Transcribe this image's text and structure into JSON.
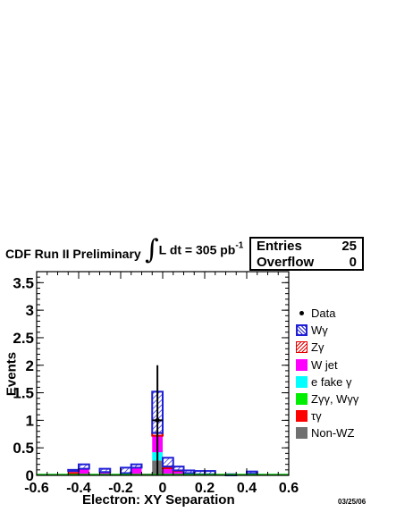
{
  "header": {
    "experiment": "CDF Run II Preliminary",
    "lumi_text": "L dt = 305 pb",
    "lumi_exp": "-1"
  },
  "stats": {
    "entries_label": "Entries",
    "entries_value": "25",
    "overflow_label": "Overflow",
    "overflow_value": "0"
  },
  "date": "03/25/06",
  "legend": [
    {
      "label": "Data",
      "marker": "dot",
      "color": "#000000"
    },
    {
      "label": "Wγ",
      "marker": "hatch",
      "color": "#1f1fd6"
    },
    {
      "label": "Zγ",
      "marker": "hatch-red",
      "color": "#e60000"
    },
    {
      "label": "W jet",
      "marker": "fill",
      "color": "#ff00ff"
    },
    {
      "label": "e fake γ",
      "marker": "fill",
      "color": "#00ffff"
    },
    {
      "label": "Zγγ, Wγγ",
      "marker": "fill",
      "color": "#00ee00"
    },
    {
      "label": "τγ",
      "marker": "fill",
      "color": "#ff0000"
    },
    {
      "label": "Non-WZ",
      "marker": "fill",
      "color": "#707070"
    }
  ],
  "chart_data": {
    "type": "bar",
    "title": "",
    "xlabel": "Electron: XY Separation",
    "ylabel": "Events",
    "xlim": [
      -0.6,
      0.6
    ],
    "ylim": [
      0,
      3.7
    ],
    "xticks": [
      "-0.6",
      "-0.4",
      "-0.2",
      "0",
      "0.2",
      "0.4",
      "0.6"
    ],
    "yticks": [
      "0",
      "0.5",
      "1",
      "1.5",
      "2",
      "2.5",
      "3",
      "3.5"
    ],
    "bin_edges": [
      -0.6,
      -0.55,
      -0.5,
      -0.45,
      -0.4,
      -0.35,
      -0.3,
      -0.25,
      -0.2,
      -0.15,
      -0.1,
      -0.05,
      0.0,
      0.05,
      0.1,
      0.15,
      0.2,
      0.25,
      0.3,
      0.35,
      0.4,
      0.45,
      0.5,
      0.55,
      0.6
    ],
    "series": [
      {
        "name": "Non-WZ",
        "color": "#707070",
        "values": [
          0,
          0,
          0,
          0,
          0,
          0,
          0,
          0,
          0,
          0,
          0,
          0.27,
          0.01,
          0,
          0,
          0,
          0,
          0,
          0,
          0,
          0,
          0,
          0,
          0
        ]
      },
      {
        "name": "τγ",
        "color": "#ff0000",
        "values": [
          0,
          0,
          0,
          0.06,
          0,
          0,
          0,
          0,
          0,
          0,
          0,
          0,
          0,
          0,
          0,
          0,
          0,
          0,
          0,
          0,
          0,
          0,
          0,
          0
        ]
      },
      {
        "name": "Zγγ, Wγγ",
        "color": "#00ee00",
        "values": [
          0,
          0,
          0,
          0,
          0,
          0,
          0,
          0,
          0,
          0,
          0,
          0,
          0,
          0,
          0,
          0,
          0,
          0,
          0,
          0,
          0,
          0,
          0,
          0
        ]
      },
      {
        "name": "e fake γ",
        "color": "#00ffff",
        "values": [
          0,
          0,
          0,
          0,
          0,
          0,
          0,
          0,
          0,
          0,
          0,
          0.15,
          0.02,
          0,
          0,
          0,
          0,
          0,
          0,
          0,
          0,
          0,
          0,
          0
        ]
      },
      {
        "name": "W jet",
        "color": "#ff00ff",
        "values": [
          0,
          0,
          0,
          0.02,
          0.12,
          0,
          0.06,
          0,
          0.04,
          0.14,
          0.03,
          0.3,
          0.1,
          0.08,
          0.04,
          0.02,
          0.02,
          0,
          0,
          0,
          0.03,
          0,
          0,
          0
        ]
      },
      {
        "name": "Zγ",
        "color": "#e60000",
        "values": [
          0,
          0,
          0,
          0,
          0,
          0,
          0,
          0,
          0,
          0,
          0,
          0.05,
          0.03,
          0.01,
          0,
          0,
          0,
          0,
          0,
          0,
          0,
          0,
          0,
          0
        ]
      },
      {
        "name": "Wγ",
        "color": "#1f1fd6",
        "values": [
          0,
          0,
          0,
          0.02,
          0.08,
          0,
          0.06,
          0,
          0.1,
          0.06,
          0,
          0.75,
          0.16,
          0.07,
          0.05,
          0.06,
          0.06,
          0,
          0.02,
          0,
          0.04,
          0,
          0,
          0
        ]
      }
    ],
    "data_points": [
      {
        "x": -0.025,
        "y": 1,
        "yerr": 1
      }
    ]
  }
}
